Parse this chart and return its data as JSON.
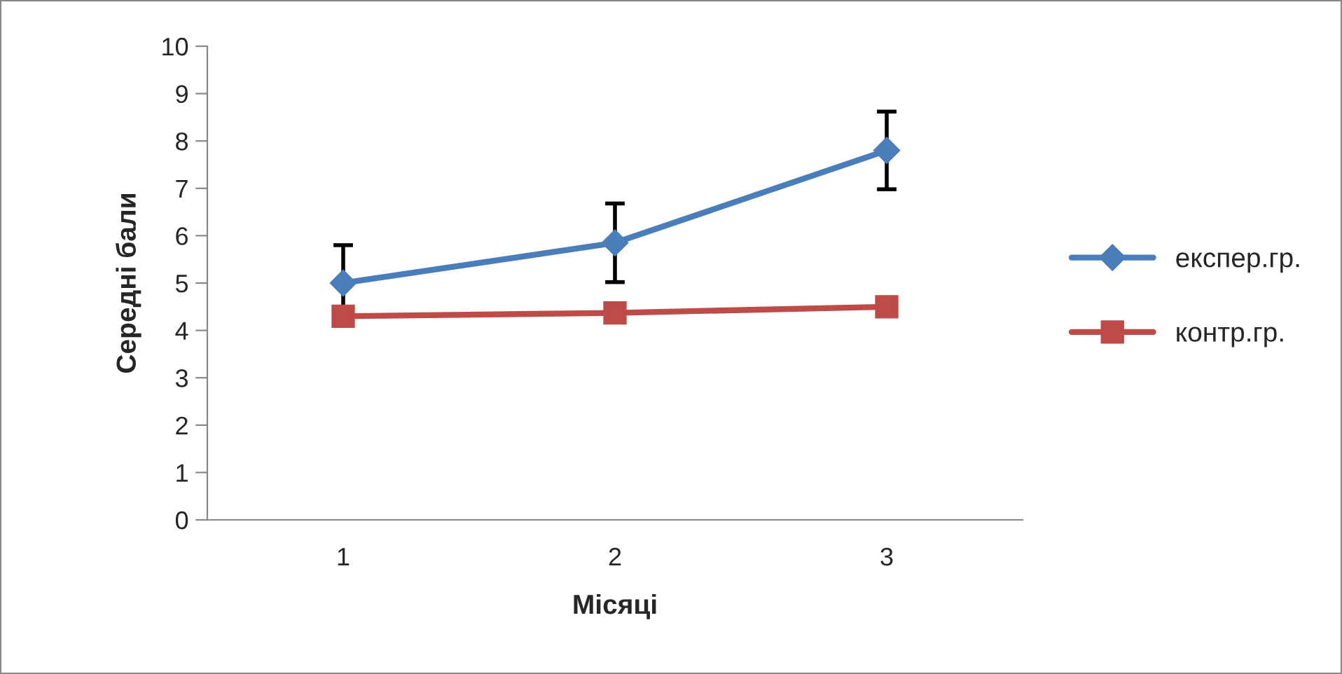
{
  "chart_data": {
    "type": "line",
    "xlabel": "Місяці",
    "ylabel": "Середні бали",
    "categories": [
      "1",
      "2",
      "3"
    ],
    "series": [
      {
        "name": "експер.гр.",
        "color": "#4a7ebb",
        "marker": "diamond",
        "values": [
          5.0,
          5.85,
          7.8
        ],
        "errors": [
          0.8,
          0.83,
          0.82
        ]
      },
      {
        "name": "контр.гр.",
        "color": "#be4b48",
        "marker": "square",
        "values": [
          4.3,
          4.37,
          4.5
        ]
      }
    ],
    "ylim": [
      0,
      10
    ],
    "yticks": [
      0,
      1,
      2,
      3,
      4,
      5,
      6,
      7,
      8,
      9,
      10
    ],
    "grid": false,
    "legend": "right"
  }
}
